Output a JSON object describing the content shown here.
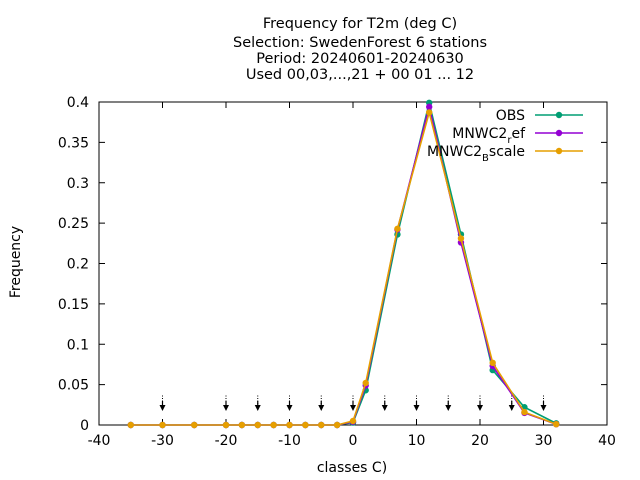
{
  "title_lines": [
    "Frequency  for T2m (deg C)",
    "Selection: SwedenForest       6 stations",
    "Period: 20240601-20240630",
    "Used 00,03,...,21 + 00 01 ... 12"
  ],
  "chart_data": {
    "type": "line",
    "xlabel": "classes C)",
    "ylabel": "Frequency",
    "xlim": [
      -40,
      40
    ],
    "ylim": [
      0,
      0.4
    ],
    "x_ticks": [
      "-40",
      "-30",
      "-20",
      "-10",
      "0",
      "10",
      "20",
      "30",
      "40"
    ],
    "y_ticks": [
      "0",
      "0.05",
      "0.1",
      "0.15",
      "0.2",
      "0.25",
      "0.3",
      "0.35",
      "0.4"
    ],
    "grid": false,
    "legend_position": "top-right",
    "x": [
      -35,
      -30,
      -25,
      -20,
      -17.5,
      -15,
      -12.5,
      -10,
      -7.5,
      -5,
      -2.5,
      0,
      2,
      7,
      12,
      17,
      22,
      27,
      32
    ],
    "series": [
      {
        "name": "OBS",
        "color": "#009e73",
        "values": [
          0,
          0,
          0,
          0,
          0,
          0,
          0,
          0,
          0,
          0,
          0,
          0.003,
          0.043,
          0.236,
          0.399,
          0.236,
          0.068,
          0.022,
          0.002
        ]
      },
      {
        "name": "MNWC2_ref",
        "color": "#9400d3",
        "values": [
          0,
          0,
          0,
          0,
          0,
          0,
          0,
          0,
          0,
          0,
          0,
          0.004,
          0.049,
          0.242,
          0.394,
          0.226,
          0.073,
          0.015,
          0.001
        ]
      },
      {
        "name": "MNWC2_Bscale",
        "color": "#e69f00",
        "values": [
          0,
          0,
          0,
          0,
          0,
          0,
          0,
          0,
          0,
          0,
          0,
          0.005,
          0.052,
          0.243,
          0.387,
          0.231,
          0.077,
          0.016,
          0.001
        ]
      }
    ],
    "arrows_x": [
      -30,
      -20,
      -15,
      -10,
      -5,
      0,
      5,
      10,
      15,
      20,
      25,
      30
    ],
    "legend_entries": [
      {
        "main": "OBS",
        "sub": "",
        "tail": ""
      },
      {
        "main": "MNWC2",
        "sub": "r",
        "tail": "ef"
      },
      {
        "main": "MNWC2",
        "sub": "B",
        "tail": "scale"
      }
    ]
  }
}
